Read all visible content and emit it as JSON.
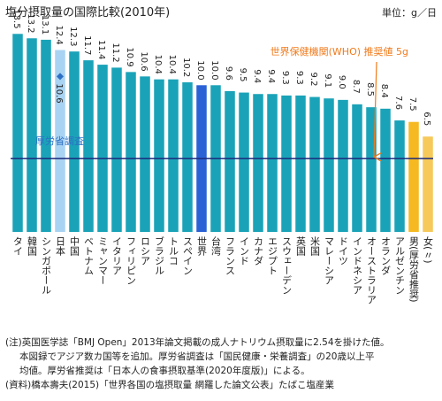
{
  "chart_data": {
    "type": "bar",
    "title": "塩分摂取量の国際比較(2010年)",
    "unit_label": "単位：g／日",
    "categories": [
      "タイ",
      "韓国",
      "シンガポール",
      "日本",
      "中国",
      "ベトナム",
      "ミャンマー",
      "イタリア",
      "フィリピン",
      "ロシア",
      "ブラジル",
      "トルコ",
      "スペイン",
      "世界",
      "台湾",
      "フランス",
      "インド",
      "カナダ",
      "エジプト",
      "スウェーデン",
      "英国",
      "米国",
      "マレーシア",
      "ドイツ",
      "インドネシア",
      "オーストラリア",
      "オランダ",
      "アルゼンチン",
      "男(厚労省推奨)",
      "女(〃)"
    ],
    "values": [
      13.5,
      13.2,
      13.1,
      12.4,
      12.3,
      11.7,
      11.4,
      11.2,
      10.9,
      10.6,
      10.4,
      10.4,
      10.2,
      10.0,
      10.0,
      9.6,
      9.5,
      9.4,
      9.4,
      9.3,
      9.3,
      9.2,
      9.1,
      9.0,
      8.7,
      8.5,
      8.4,
      7.6,
      7.5,
      6.5
    ],
    "value_labels": [
      "13.5",
      "13.2",
      "13.1",
      "12.4",
      "12.3",
      "11.7",
      "11.4",
      "11.2",
      "10.9",
      "10.6",
      "10.4",
      "10.4",
      "10.2",
      "10.0",
      "10.0",
      "9.6",
      "9.5",
      "9.4",
      "9.4",
      "9.3",
      "9.3",
      "9.2",
      "9.1",
      "9.0",
      "8.7",
      "8.5",
      "8.4",
      "7.6",
      "7.5",
      "6.5"
    ],
    "colors": [
      "#1aa3b8",
      "#1aa3b8",
      "#1aa3b8",
      "#a9d3f2",
      "#1aa3b8",
      "#1aa3b8",
      "#1aa3b8",
      "#1aa3b8",
      "#1aa3b8",
      "#1aa3b8",
      "#1aa3b8",
      "#1aa3b8",
      "#1aa3b8",
      "#2a62d6",
      "#1aa3b8",
      "#1aa3b8",
      "#1aa3b8",
      "#1aa3b8",
      "#1aa3b8",
      "#1aa3b8",
      "#1aa3b8",
      "#1aa3b8",
      "#1aa3b8",
      "#1aa3b8",
      "#1aa3b8",
      "#1aa3b8",
      "#1aa3b8",
      "#1aa3b8",
      "#f6b921",
      "#f6c95a"
    ],
    "ylim": [
      0,
      14
    ],
    "marker": {
      "category": "日本",
      "value": 10.6,
      "value_label": "10.6",
      "label": "厚労省調査",
      "color": "#2c6fc4"
    },
    "reference_line": {
      "value": 5,
      "label": "世界保健機関(WHO) 推奨値 5g",
      "color": "#1b2a7a",
      "label_color": "#f07a1a"
    },
    "notes": [
      "(注)英国医学誌「BMJ Open」2013年論文掲載の成人ナトリウム摂取量に2.54を掛けた値。",
      "本図録でアジア数カ国等を追加。厚労省調査は「国民健康・栄養調査」の20歳以上平",
      "均値。厚労省推奨は「日本人の食事摂取基準(2020年度版)」による。",
      "(資料)橋本壽夫(2015)「世界各国の塩摂取量 網羅した論文公表」たばこ塩産業"
    ]
  }
}
